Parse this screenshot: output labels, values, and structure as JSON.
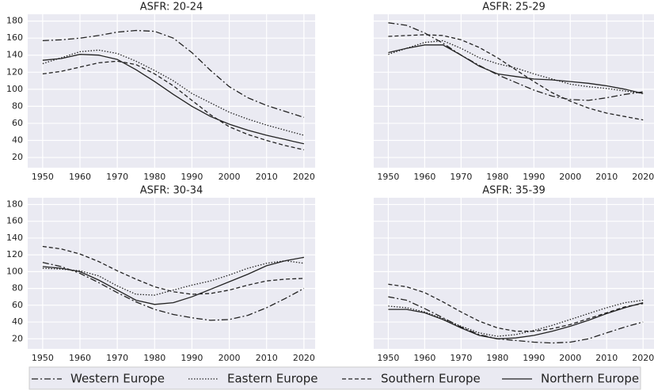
{
  "chart_data": [
    {
      "type": "line",
      "title": "ASFR: 20-24",
      "x": [
        1950,
        1955,
        1960,
        1965,
        1970,
        1975,
        1980,
        1985,
        1990,
        1995,
        2000,
        2005,
        2010,
        2015,
        2020
      ],
      "xlim": [
        1946,
        2023
      ],
      "xticks": [
        1950,
        1960,
        1970,
        1980,
        1990,
        2000,
        2010,
        2020
      ],
      "ylim": [
        8,
        188
      ],
      "yticks": [
        20,
        40,
        60,
        80,
        100,
        120,
        140,
        160,
        180
      ],
      "grid": true,
      "series": [
        {
          "name": "Western Europe",
          "color": "#222222",
          "style": "dashdot",
          "values": [
            157,
            158,
            160,
            163,
            167,
            169,
            168,
            160,
            143,
            122,
            103,
            90,
            81,
            74,
            67
          ]
        },
        {
          "name": "Eastern Europe",
          "color": "#222222",
          "style": "dotted",
          "values": [
            130,
            137,
            144,
            146,
            142,
            133,
            122,
            110,
            95,
            84,
            73,
            65,
            58,
            52,
            46
          ]
        },
        {
          "name": "Southern Europe",
          "color": "#222222",
          "style": "dashed",
          "values": [
            118,
            121,
            126,
            131,
            133,
            129,
            118,
            104,
            87,
            70,
            56,
            47,
            40,
            34,
            29
          ]
        },
        {
          "name": "Northern Europe",
          "color": "#222222",
          "style": "solid",
          "values": [
            134,
            136,
            141,
            140,
            135,
            123,
            109,
            94,
            80,
            68,
            59,
            52,
            46,
            41,
            36
          ]
        }
      ]
    },
    {
      "type": "line",
      "title": "ASFR: 25-29",
      "x": [
        1950,
        1955,
        1960,
        1965,
        1970,
        1975,
        1980,
        1985,
        1990,
        1995,
        2000,
        2005,
        2010,
        2015,
        2020
      ],
      "xlim": [
        1946,
        2023
      ],
      "xticks": [
        1950,
        1960,
        1970,
        1980,
        1990,
        2000,
        2010,
        2020
      ],
      "ylim": [
        8,
        188
      ],
      "yticks": [
        20,
        40,
        60,
        80,
        100,
        120,
        140,
        160,
        180
      ],
      "grid": true,
      "series": [
        {
          "color": "#222222",
          "style": "dashdot",
          "values": [
            178,
            175,
            166,
            154,
            140,
            128,
            117,
            108,
            99,
            92,
            88,
            87,
            90,
            94,
            97
          ]
        },
        {
          "color": "#222222",
          "style": "dotted",
          "values": [
            141,
            148,
            155,
            157,
            148,
            137,
            130,
            125,
            118,
            112,
            106,
            103,
            101,
            98,
            95
          ]
        },
        {
          "color": "#222222",
          "style": "dashed",
          "values": [
            162,
            163,
            164,
            163,
            158,
            149,
            137,
            123,
            109,
            96,
            86,
            78,
            72,
            68,
            64
          ]
        },
        {
          "color": "#222222",
          "style": "solid",
          "values": [
            143,
            148,
            152,
            152,
            140,
            127,
            118,
            115,
            112,
            111,
            109,
            107,
            104,
            100,
            95
          ]
        }
      ]
    },
    {
      "type": "line",
      "title": "ASFR: 30-34",
      "x": [
        1950,
        1955,
        1960,
        1965,
        1970,
        1975,
        1980,
        1985,
        1990,
        1995,
        2000,
        2005,
        2010,
        2015,
        2020
      ],
      "xlim": [
        1946,
        2023
      ],
      "xticks": [
        1950,
        1960,
        1970,
        1980,
        1990,
        2000,
        2010,
        2020
      ],
      "ylim": [
        8,
        188
      ],
      "yticks": [
        20,
        40,
        60,
        80,
        100,
        120,
        140,
        160,
        180
      ],
      "grid": true,
      "series": [
        {
          "color": "#222222",
          "style": "dashdot",
          "values": [
            111,
            106,
            98,
            87,
            75,
            64,
            55,
            49,
            45,
            42,
            43,
            48,
            57,
            68,
            80
          ]
        },
        {
          "color": "#222222",
          "style": "dotted",
          "values": [
            104,
            103,
            101,
            95,
            83,
            73,
            72,
            78,
            84,
            89,
            96,
            104,
            110,
            113,
            110
          ]
        },
        {
          "color": "#222222",
          "style": "dashed",
          "values": [
            130,
            127,
            121,
            112,
            101,
            91,
            82,
            76,
            73,
            74,
            78,
            84,
            89,
            91,
            92
          ]
        },
        {
          "color": "#222222",
          "style": "solid",
          "values": [
            106,
            104,
            100,
            90,
            78,
            66,
            61,
            63,
            70,
            79,
            88,
            97,
            107,
            113,
            117
          ]
        }
      ]
    },
    {
      "type": "line",
      "title": "ASFR: 35-39",
      "x": [
        1950,
        1955,
        1960,
        1965,
        1970,
        1975,
        1980,
        1985,
        1990,
        1995,
        2000,
        2005,
        2010,
        2015,
        2020
      ],
      "xlim": [
        1946,
        2023
      ],
      "xticks": [
        1950,
        1960,
        1970,
        1980,
        1990,
        2000,
        2010,
        2020
      ],
      "ylim": [
        8,
        188
      ],
      "yticks": [
        20,
        40,
        60,
        80,
        100,
        120,
        140,
        160,
        180
      ],
      "grid": true,
      "series": [
        {
          "color": "#222222",
          "style": "dashdot",
          "values": [
            70,
            66,
            56,
            45,
            34,
            25,
            20,
            18,
            16,
            15,
            16,
            20,
            27,
            34,
            40
          ]
        },
        {
          "color": "#222222",
          "style": "dotted",
          "values": [
            59,
            57,
            52,
            44,
            35,
            27,
            23,
            25,
            30,
            36,
            43,
            50,
            57,
            63,
            66
          ]
        },
        {
          "color": "#222222",
          "style": "dashed",
          "values": [
            85,
            82,
            75,
            64,
            52,
            41,
            33,
            29,
            29,
            32,
            37,
            44,
            51,
            58,
            62
          ]
        },
        {
          "color": "#222222",
          "style": "solid",
          "values": [
            55,
            55,
            51,
            43,
            33,
            24,
            20,
            21,
            24,
            29,
            35,
            42,
            50,
            57,
            63
          ]
        }
      ]
    }
  ]
}
